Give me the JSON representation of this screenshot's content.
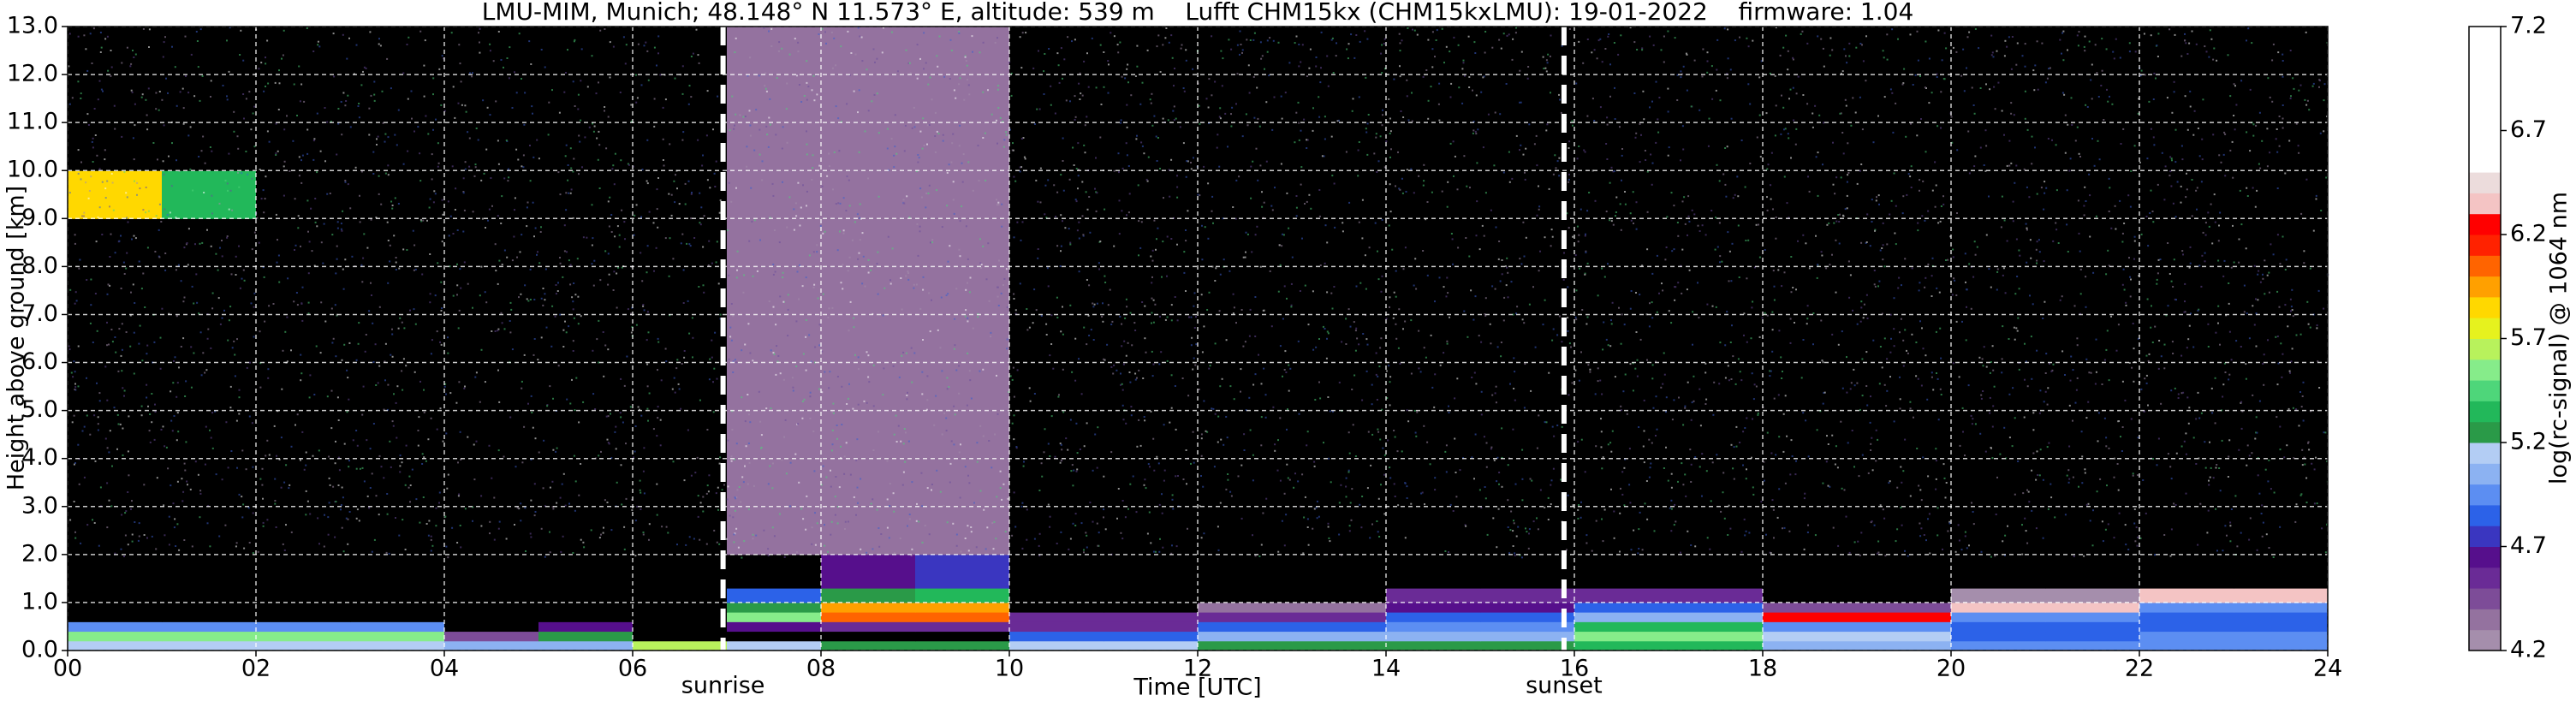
{
  "chart_data": {
    "type": "heatmap",
    "title": "LMU-MIM, Munich; 48.148° N 11.573° E, altitude: 539 m    Lufft CHM15kx (CHM15kxLMU): 19-01-2022    firmware: 1.04",
    "xlabel": "Time [UTC]",
    "ylabel": "Height above ground [km]",
    "xlim": [
      0,
      24
    ],
    "xticks": [
      {
        "value": 0,
        "label": "00"
      },
      {
        "value": 2,
        "label": "02"
      },
      {
        "value": 4,
        "label": "04"
      },
      {
        "value": 6,
        "label": "06"
      },
      {
        "value": 8,
        "label": "08"
      },
      10,
      12,
      14,
      16,
      18,
      20,
      22,
      24
    ],
    "ylim": [
      0,
      13
    ],
    "yticks": [
      {
        "value": 0,
        "label": "0.0"
      },
      {
        "value": 1,
        "label": "1.0"
      },
      {
        "value": 2,
        "label": "2.0"
      },
      {
        "value": 3,
        "label": "3.0"
      },
      {
        "value": 4,
        "label": "4.0"
      },
      {
        "value": 5,
        "label": "5.0"
      },
      {
        "value": 6,
        "label": "6.0"
      },
      {
        "value": 7,
        "label": "7.0"
      },
      {
        "value": 8,
        "label": "8.0"
      },
      {
        "value": 9,
        "label": "9.0"
      },
      {
        "value": 10,
        "label": "10.0"
      },
      {
        "value": 11,
        "label": "11.0"
      },
      {
        "value": 12,
        "label": "12.0"
      },
      {
        "value": 13,
        "label": "13.0"
      }
    ],
    "grid": true,
    "x_edges": [
      0,
      1,
      2,
      3,
      4,
      5,
      6,
      7,
      8,
      9,
      10,
      11,
      12,
      13,
      14,
      15,
      16,
      17,
      18,
      19,
      20,
      21,
      22,
      23,
      24
    ],
    "y_edges": [
      0,
      0.2,
      0.4,
      0.6,
      0.8,
      1.0,
      1.3,
      2,
      9,
      10,
      13
    ],
    "z": [
      [
        5.1,
        5.1,
        5.1,
        5.1,
        5.0,
        5.0,
        5.6,
        5.1,
        5.2,
        5.2,
        5.1,
        5.1,
        5.2,
        5.2,
        5.2,
        5.2,
        5.3,
        5.3,
        5.0,
        5.0,
        4.9,
        4.9,
        4.9,
        4.9
      ],
      [
        5.5,
        5.5,
        5.5,
        5.5,
        4.4,
        5.2,
        3.8,
        3.9,
        4.0,
        4.0,
        4.8,
        4.8,
        5.0,
        5.0,
        5.0,
        5.0,
        5.5,
        5.5,
        5.1,
        5.1,
        4.8,
        4.8,
        4.9,
        4.9
      ],
      [
        4.9,
        4.9,
        4.9,
        4.9,
        3.8,
        4.6,
        3.8,
        4.6,
        4.5,
        4.5,
        4.5,
        4.5,
        4.8,
        4.8,
        4.9,
        4.9,
        5.3,
        5.3,
        4.9,
        4.9,
        4.8,
        4.8,
        4.8,
        4.8
      ],
      [
        3.8,
        3.8,
        3.8,
        3.8,
        3.8,
        3.8,
        3.8,
        5.5,
        6.0,
        6.0,
        4.5,
        4.5,
        4.5,
        4.5,
        4.8,
        4.8,
        5.0,
        5.0,
        6.2,
        6.2,
        4.9,
        4.9,
        4.8,
        4.8
      ],
      [
        3.8,
        3.8,
        3.8,
        3.8,
        3.8,
        3.8,
        3.8,
        5.2,
        5.9,
        5.9,
        3.9,
        3.9,
        4.3,
        4.3,
        4.6,
        4.6,
        4.8,
        4.8,
        4.4,
        4.4,
        6.3,
        6.3,
        4.9,
        4.9
      ],
      [
        3.8,
        3.8,
        3.8,
        3.8,
        3.8,
        3.8,
        3.8,
        4.8,
        5.2,
        5.3,
        3.9,
        3.9,
        3.9,
        3.9,
        4.5,
        4.5,
        4.5,
        4.5,
        3.9,
        3.9,
        4.2,
        4.2,
        6.3,
        6.3
      ],
      [
        4.0,
        4.0,
        4.0,
        4.0,
        3.9,
        3.9,
        3.9,
        4.1,
        4.6,
        4.7,
        4.0,
        4.0,
        4.0,
        4.0,
        4.0,
        4.0,
        4.0,
        4.0,
        4.0,
        4.0,
        4.0,
        4.0,
        4.0,
        4.0
      ],
      [
        4.0,
        4.0,
        4.0,
        4.0,
        4.0,
        4.0,
        4.0,
        4.3,
        4.3,
        4.3,
        4.0,
        4.0,
        4.0,
        4.0,
        4.0,
        4.0,
        4.0,
        4.0,
        4.0,
        4.0,
        4.0,
        4.0,
        4.0,
        4.0
      ],
      [
        5.8,
        5.3,
        4.0,
        4.0,
        4.0,
        4.0,
        4.0,
        4.3,
        4.3,
        4.3,
        4.0,
        4.0,
        4.0,
        4.0,
        4.0,
        4.0,
        4.0,
        4.0,
        4.0,
        4.0,
        4.0,
        4.0,
        4.0,
        4.0
      ],
      [
        4.0,
        4.0,
        4.0,
        4.0,
        4.0,
        4.0,
        4.0,
        4.3,
        4.3,
        4.3,
        4.0,
        4.0,
        4.0,
        4.0,
        4.0,
        4.0,
        4.0,
        4.0,
        4.0,
        4.0,
        4.0,
        4.0,
        4.0,
        4.0
      ]
    ],
    "under_color": "#000000",
    "colorbar": {
      "label": "log(rc-signal) @ 1064 nm",
      "lim": [
        4.2,
        7.2
      ],
      "ticks": [
        4.2,
        4.7,
        5.2,
        5.7,
        6.2,
        6.7,
        7.2
      ],
      "colors": [
        "#a58eac",
        "#94729f",
        "#7d4c98",
        "#6a2b96",
        "#560f8c",
        "#3a36c0",
        "#2c62e8",
        "#5c8ef2",
        "#8cb2f2",
        "#b3cdf4",
        "#2a9a48",
        "#22b85a",
        "#4ed67a",
        "#86ec8a",
        "#b8f25c",
        "#e6f21e",
        "#ffd800",
        "#ffa000",
        "#ff6400",
        "#ff2200",
        "#ff0000",
        "#f4c4c4",
        "#ecdcdc",
        "#ffffff",
        "#ffffff",
        "#ffffff",
        "#ffffff",
        "#ffffff",
        "#ffffff",
        "#ffffff"
      ]
    },
    "annotations": [
      {
        "text": "sunrise",
        "x": 6.96
      },
      {
        "text": "sunset",
        "x": 15.89
      }
    ]
  }
}
